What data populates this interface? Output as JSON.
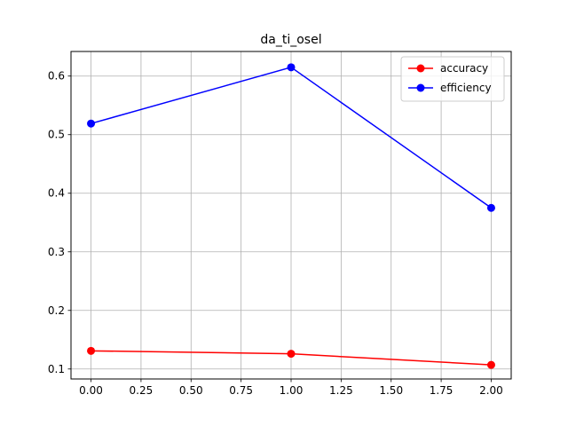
{
  "chart_data": {
    "type": "line",
    "title": "da_ti_osel",
    "xlabel": "",
    "ylabel": "",
    "xlim": [
      -0.1,
      2.1
    ],
    "ylim": [
      0.083,
      0.642
    ],
    "x": [
      0.0,
      1.0,
      2.0
    ],
    "xticks": [
      0.0,
      0.25,
      0.5,
      0.75,
      1.0,
      1.25,
      1.5,
      1.75,
      2.0
    ],
    "xtick_labels": [
      "0.00",
      "0.25",
      "0.50",
      "0.75",
      "1.00",
      "1.25",
      "1.50",
      "1.75",
      "2.00"
    ],
    "yticks": [
      0.1,
      0.2,
      0.3,
      0.4,
      0.5,
      0.6
    ],
    "ytick_labels": [
      "0.1",
      "0.2",
      "0.3",
      "0.4",
      "0.5",
      "0.6"
    ],
    "grid": true,
    "legend_position": "top-right",
    "series": [
      {
        "name": "accuracy",
        "color": "#ff0000",
        "values": [
          0.131,
          0.126,
          0.107
        ]
      },
      {
        "name": "efficiency",
        "color": "#0000ff",
        "values": [
          0.519,
          0.615,
          0.375
        ]
      }
    ]
  }
}
